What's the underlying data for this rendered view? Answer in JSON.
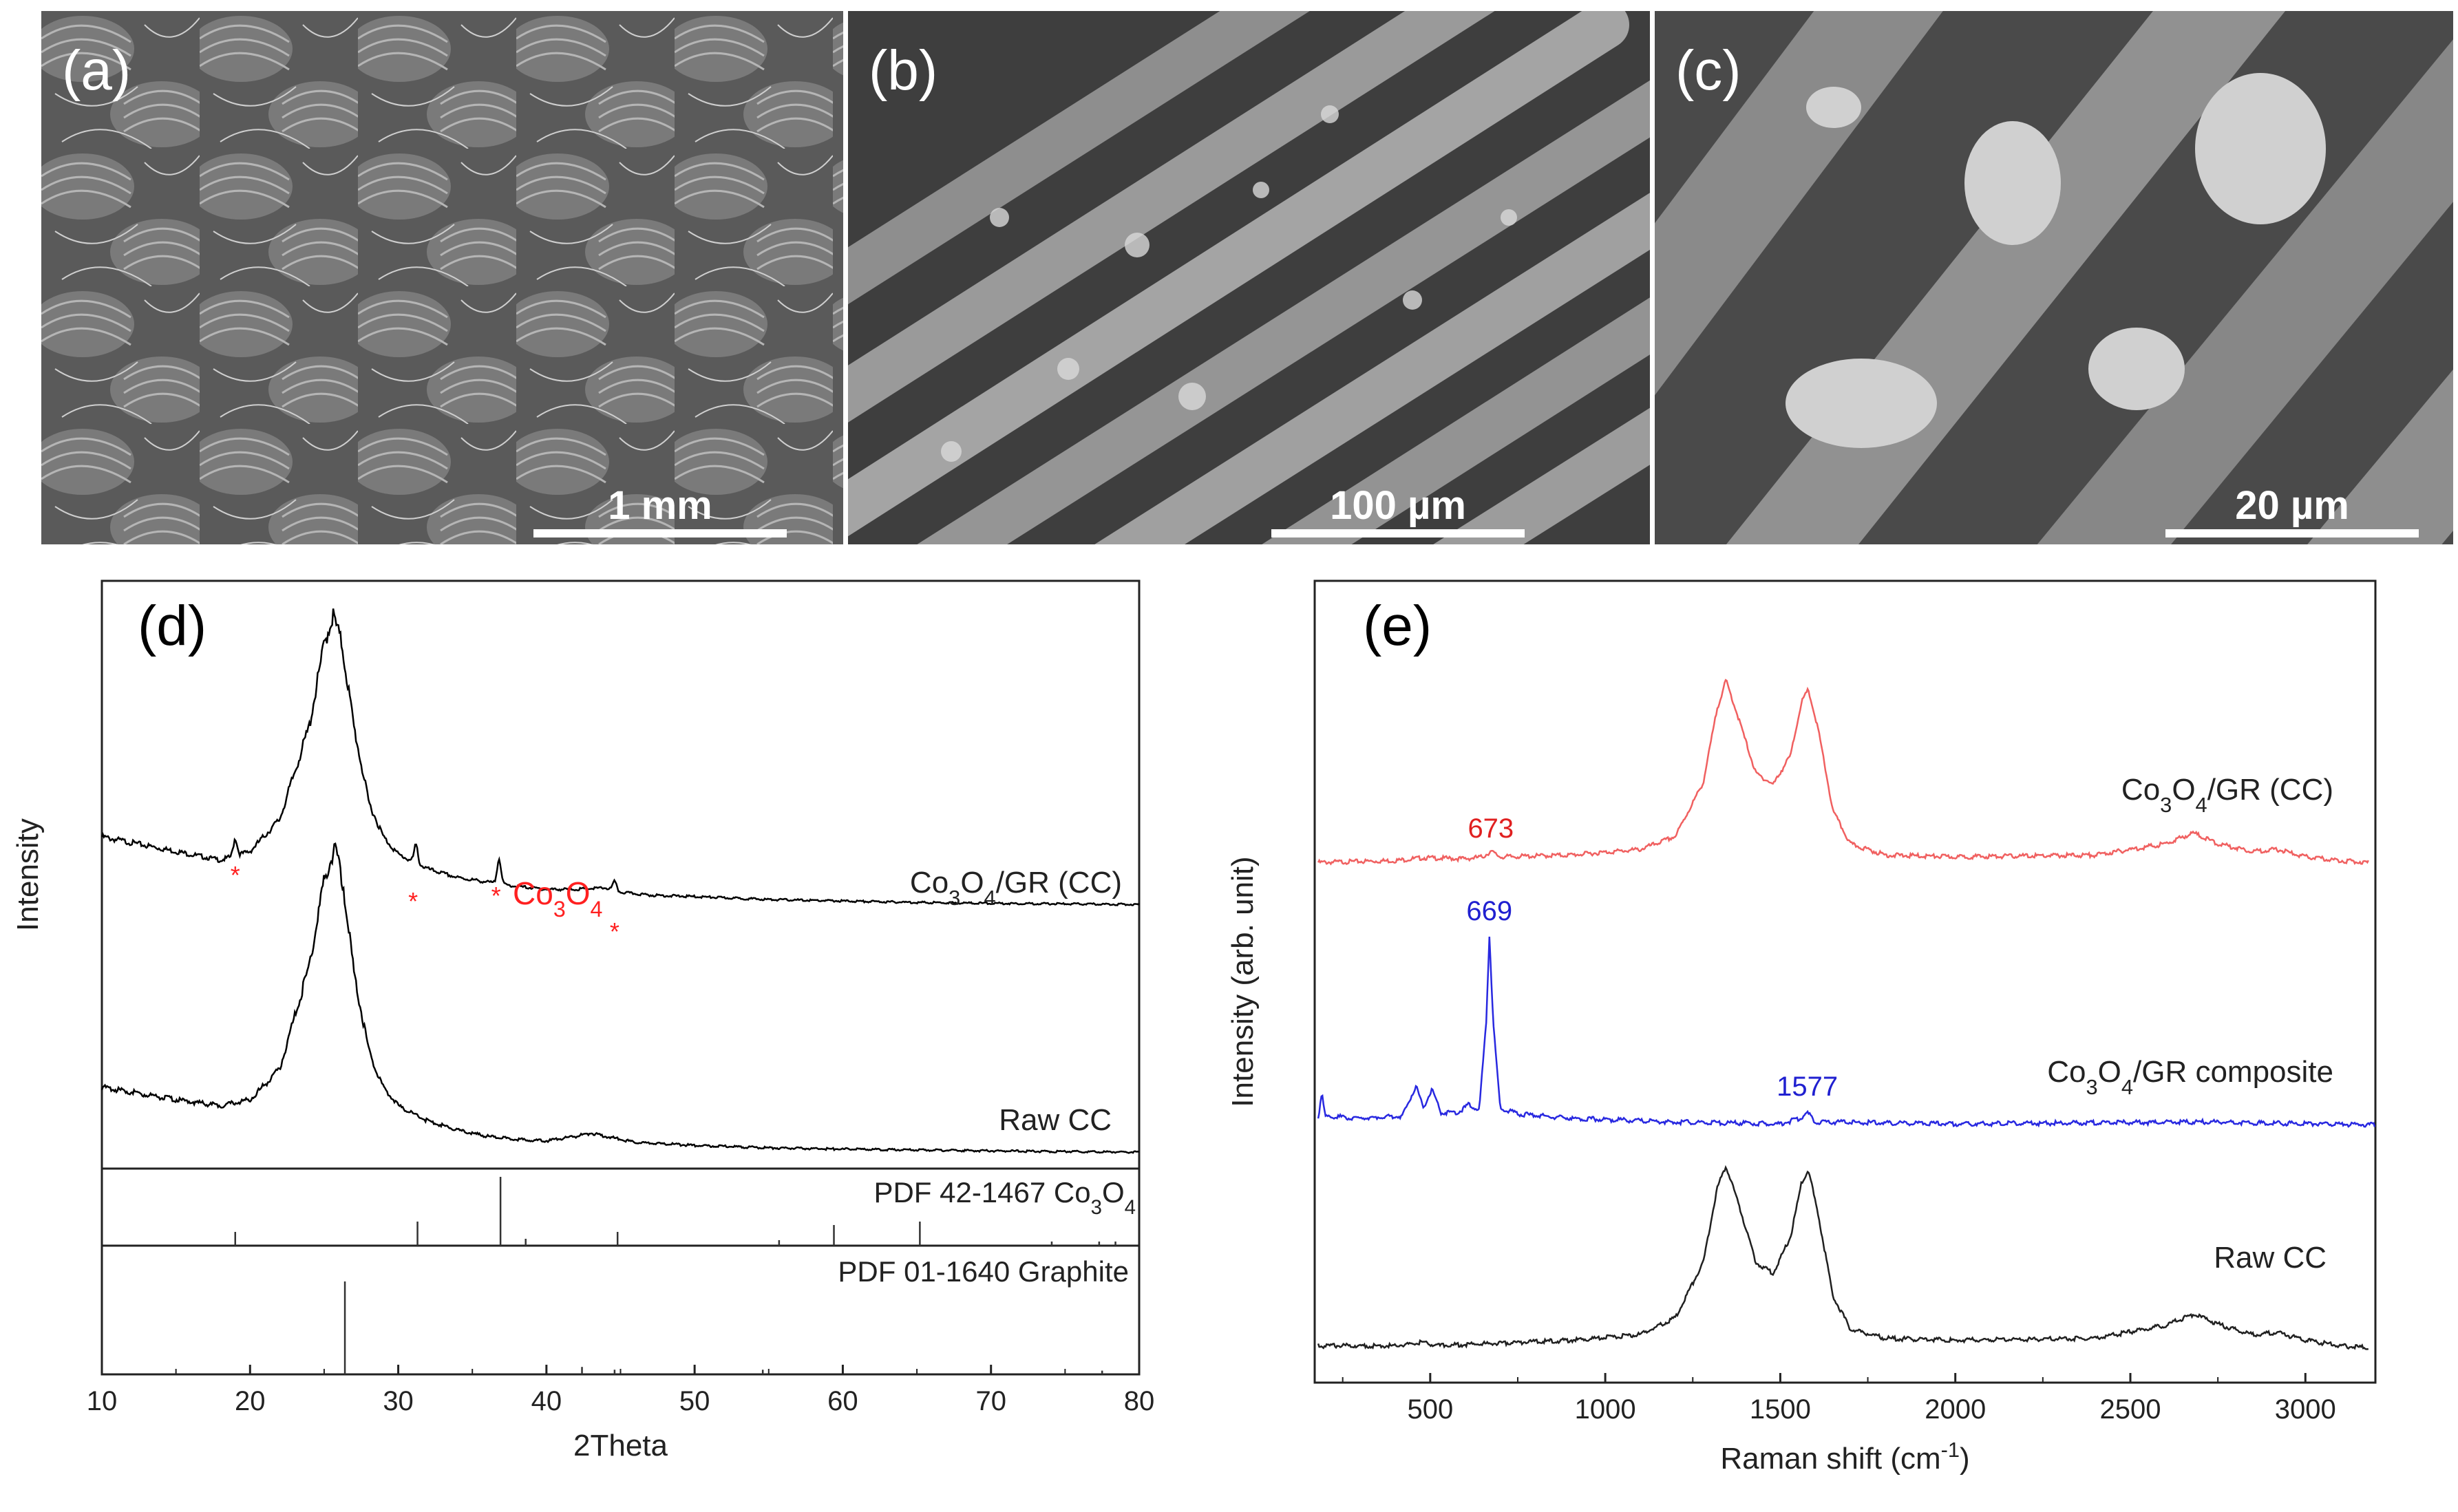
{
  "panels": {
    "a": {
      "label": "(a)",
      "scale_bar": "1 mm"
    },
    "b": {
      "label": "(b)",
      "scale_bar": "100 µm"
    },
    "c": {
      "label": "(c)",
      "scale_bar": "20 µm"
    }
  },
  "chart_data": [
    {
      "panel": "(d)",
      "type": "line",
      "xlabel": "2Theta",
      "ylabel": "Intensity",
      "xlim": [
        10,
        80
      ],
      "xticks": [
        10,
        20,
        30,
        40,
        50,
        60,
        70,
        80
      ],
      "series": [
        {
          "name": "Co3O4/GR (CC)",
          "label_main": "Co",
          "label_sub1": "3",
          "label_mid": "O",
          "label_sub2": "4",
          "label_tail": "/GR (CC)",
          "color": "#000000",
          "points": [
            [
              10,
              0.24
            ],
            [
              12,
              0.22
            ],
            [
              15,
              0.19
            ],
            [
              18,
              0.16
            ],
            [
              20,
              0.19
            ],
            [
              22,
              0.3
            ],
            [
              24,
              0.62
            ],
            [
              25,
              0.9
            ],
            [
              25.6,
              1.0
            ],
            [
              26.2,
              0.9
            ],
            [
              27,
              0.62
            ],
            [
              28,
              0.36
            ],
            [
              29,
              0.24
            ],
            [
              30,
              0.18
            ],
            [
              31,
              0.155
            ],
            [
              32,
              0.13
            ],
            [
              34,
              0.1
            ],
            [
              36,
              0.085
            ],
            [
              38,
              0.07
            ],
            [
              40,
              0.06
            ],
            [
              42,
              0.06
            ],
            [
              44,
              0.065
            ],
            [
              45,
              0.05
            ],
            [
              47,
              0.04
            ],
            [
              50,
              0.035
            ],
            [
              55,
              0.025
            ],
            [
              60,
              0.02
            ],
            [
              65,
              0.015
            ],
            [
              70,
              0.012
            ],
            [
              75,
              0.01
            ],
            [
              80,
              0.008
            ]
          ],
          "sharp_peaks": [
            [
              19.0,
              0.06
            ],
            [
              31.2,
              0.06
            ],
            [
              36.8,
              0.09
            ],
            [
              44.6,
              0.03
            ]
          ]
        },
        {
          "name": "Raw CC",
          "color": "#000000",
          "points": [
            [
              10,
              0.22
            ],
            [
              12,
              0.205
            ],
            [
              15,
              0.18
            ],
            [
              18,
              0.16
            ],
            [
              20,
              0.18
            ],
            [
              22,
              0.28
            ],
            [
              24,
              0.62
            ],
            [
              25,
              0.9
            ],
            [
              25.7,
              1.0
            ],
            [
              26.3,
              0.88
            ],
            [
              27,
              0.6
            ],
            [
              28,
              0.34
            ],
            [
              29,
              0.22
            ],
            [
              30,
              0.16
            ],
            [
              32,
              0.11
            ],
            [
              34,
              0.08
            ],
            [
              36,
              0.06
            ],
            [
              38,
              0.05
            ],
            [
              40,
              0.045
            ],
            [
              42,
              0.06
            ],
            [
              43,
              0.07
            ],
            [
              44,
              0.06
            ],
            [
              46,
              0.04
            ],
            [
              50,
              0.03
            ],
            [
              55,
              0.022
            ],
            [
              60,
              0.018
            ],
            [
              70,
              0.012
            ],
            [
              80,
              0.008
            ]
          ]
        }
      ],
      "annotations": {
        "co3o4_label_main": "Co",
        "co3o4_sub1": "3",
        "co3o4_mid": "O",
        "co3o4_sub2": "4",
        "star_color": "#ff2020",
        "stars": [
          19.0,
          31.0,
          36.6,
          44.6
        ]
      },
      "reference_1": {
        "label": "PDF 42-1467 Co",
        "label_sub1": "3",
        "label_mid": "O",
        "label_sub2": "4",
        "sticks": [
          [
            19.0,
            0.2
          ],
          [
            31.3,
            0.35
          ],
          [
            36.9,
            1.0
          ],
          [
            38.6,
            0.1
          ],
          [
            44.8,
            0.2
          ],
          [
            55.7,
            0.08
          ],
          [
            59.4,
            0.3
          ],
          [
            65.2,
            0.35
          ],
          [
            74.1,
            0.06
          ],
          [
            77.3,
            0.06
          ],
          [
            78.4,
            0.06
          ]
        ]
      },
      "reference_2": {
        "label": "PDF 01-1640 Graphite",
        "sticks": [
          [
            26.4,
            1.0
          ],
          [
            42.4,
            0.08
          ],
          [
            44.6,
            0.05
          ],
          [
            54.6,
            0.05
          ],
          [
            77.5,
            0.04
          ]
        ]
      }
    },
    {
      "panel": "(e)",
      "type": "line",
      "xlabel_main": "Raman shift (cm",
      "xlabel_sup": "-1",
      "xlabel_tail": ")",
      "ylabel": "Intensity (arb. unit)",
      "xlim": [
        170,
        3200
      ],
      "xticks": [
        500,
        1000,
        1500,
        2000,
        2500,
        3000
      ],
      "series": [
        {
          "name": "Co3O4/GR (CC)",
          "label_main": "Co",
          "label_sub1": "3",
          "label_mid": "O",
          "label_sub2": "4",
          "label_tail": "/GR (CC)",
          "color": "#f06060",
          "peak_label": "673",
          "peak_label_color": "#e02020",
          "peak_label_x": 673,
          "points": [
            [
              180,
              0.02
            ],
            [
              400,
              0.03
            ],
            [
              480,
              0.045
            ],
            [
              600,
              0.04
            ],
            [
              650,
              0.05
            ],
            [
              673,
              0.08
            ],
            [
              700,
              0.05
            ],
            [
              900,
              0.06
            ],
            [
              1100,
              0.09
            ],
            [
              1200,
              0.16
            ],
            [
              1280,
              0.45
            ],
            [
              1320,
              0.85
            ],
            [
              1345,
              1.0
            ],
            [
              1380,
              0.8
            ],
            [
              1430,
              0.5
            ],
            [
              1480,
              0.44
            ],
            [
              1530,
              0.6
            ],
            [
              1560,
              0.88
            ],
            [
              1580,
              0.95
            ],
            [
              1610,
              0.72
            ],
            [
              1650,
              0.3
            ],
            [
              1700,
              0.12
            ],
            [
              1800,
              0.06
            ],
            [
              2000,
              0.05
            ],
            [
              2400,
              0.06
            ],
            [
              2600,
              0.12
            ],
            [
              2680,
              0.18
            ],
            [
              2750,
              0.12
            ],
            [
              2850,
              0.08
            ],
            [
              2920,
              0.09
            ],
            [
              3000,
              0.05
            ],
            [
              3100,
              0.03
            ],
            [
              3180,
              0.02
            ]
          ]
        },
        {
          "name": "Co3O4/GR composite",
          "label_main": "Co",
          "label_sub1": "3",
          "label_mid": "O",
          "label_sub2": "4",
          "label_tail": "/GR composite",
          "color": "#2828e0",
          "peak_labels": [
            {
              "text": "669",
              "x": 669,
              "color": "#2020d0"
            },
            {
              "text": "1577",
              "x": 1577,
              "color": "#2020d0"
            }
          ],
          "points": [
            [
              180,
              0.05
            ],
            [
              190,
              0.18
            ],
            [
              200,
              0.06
            ],
            [
              300,
              0.05
            ],
            [
              420,
              0.06
            ],
            [
              460,
              0.22
            ],
            [
              480,
              0.1
            ],
            [
              505,
              0.2
            ],
            [
              530,
              0.08
            ],
            [
              580,
              0.08
            ],
            [
              610,
              0.12
            ],
            [
              640,
              0.09
            ],
            [
              660,
              0.55
            ],
            [
              669,
              1.0
            ],
            [
              680,
              0.55
            ],
            [
              700,
              0.1
            ],
            [
              760,
              0.07
            ],
            [
              900,
              0.05
            ],
            [
              1200,
              0.03
            ],
            [
              1500,
              0.02
            ],
            [
              1560,
              0.05
            ],
            [
              1577,
              0.08
            ],
            [
              1600,
              0.03
            ],
            [
              2000,
              0.02
            ],
            [
              2700,
              0.03
            ],
            [
              3200,
              0.015
            ]
          ]
        },
        {
          "name": "Raw CC",
          "color": "#202020",
          "points": [
            [
              180,
              0.03
            ],
            [
              400,
              0.03
            ],
            [
              480,
              0.05
            ],
            [
              520,
              0.03
            ],
            [
              900,
              0.06
            ],
            [
              1100,
              0.09
            ],
            [
              1200,
              0.18
            ],
            [
              1280,
              0.48
            ],
            [
              1320,
              0.88
            ],
            [
              1345,
              1.0
            ],
            [
              1380,
              0.8
            ],
            [
              1430,
              0.48
            ],
            [
              1480,
              0.42
            ],
            [
              1530,
              0.62
            ],
            [
              1560,
              0.9
            ],
            [
              1580,
              0.98
            ],
            [
              1610,
              0.72
            ],
            [
              1650,
              0.3
            ],
            [
              1700,
              0.12
            ],
            [
              1800,
              0.07
            ],
            [
              2000,
              0.06
            ],
            [
              2400,
              0.07
            ],
            [
              2600,
              0.14
            ],
            [
              2680,
              0.2
            ],
            [
              2760,
              0.14
            ],
            [
              2850,
              0.09
            ],
            [
              2920,
              0.1
            ],
            [
              3000,
              0.06
            ],
            [
              3100,
              0.03
            ],
            [
              3180,
              0.02
            ]
          ]
        }
      ]
    }
  ]
}
